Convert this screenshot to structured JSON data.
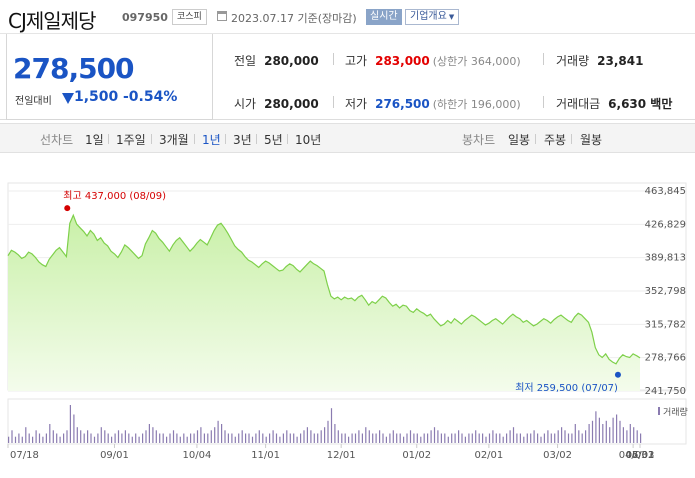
{
  "header": {
    "stock_name": "CJ제일제당",
    "stock_code": "097950",
    "market": "코스피",
    "date_text": "2023.07.17 기준(장마감)",
    "realtime_label": "실시간",
    "company_label": "기업개요"
  },
  "price": {
    "current": "278,500",
    "change_label": "전일대비",
    "change_value": "1,500",
    "change_pct": "-0.54%"
  },
  "info": {
    "prev_close_label": "전일",
    "prev_close": "280,000",
    "high_label": "고가",
    "high": "283,000",
    "upper_limit": "(상한가 364,000)",
    "volume_label": "거래량",
    "volume": "23,841",
    "open_label": "시가",
    "open": "280,000",
    "low_label": "저가",
    "low": "276,500",
    "lower_limit": "(하한가 196,000)",
    "amount_label": "거래대금",
    "amount": "6,630 백만"
  },
  "tabs": {
    "line_chart": "선차트",
    "periods": [
      "1일",
      "1주일",
      "3개월",
      "1년",
      "3년",
      "5년",
      "10년"
    ],
    "active": "1년",
    "candle_chart": "봉차트",
    "candles": [
      "일봉",
      "주봉",
      "월봉"
    ]
  },
  "colors": {
    "price_down": "#1a54c4",
    "price_up": "#e30000",
    "line": "#7ed04a",
    "fill_top": "#c9f0a8",
    "fill_bottom": "#f4fcec",
    "volume_bar": "#8a7bb0"
  },
  "chart_data": {
    "type": "area",
    "y_ticks": [
      "463,845",
      "426,829",
      "389,813",
      "352,798",
      "315,782",
      "278,766",
      "241,750"
    ],
    "ylim": [
      241750,
      463845
    ],
    "x_ticks": [
      "07/18",
      "09/01",
      "10/04",
      "11/01",
      "12/01",
      "01/02",
      "02/01",
      "03/02",
      "04/03",
      "05/02",
      "06/01",
      "07/03"
    ],
    "high_annotation": "최고 437,000 (08/09)",
    "low_annotation": "최저 259,500 (07/07)",
    "volume_legend": "거래량",
    "values": [
      392000,
      398000,
      396000,
      393000,
      389000,
      391000,
      396000,
      394000,
      390000,
      385000,
      382000,
      380000,
      388000,
      393000,
      398000,
      401000,
      396000,
      391000,
      428000,
      437000,
      427000,
      423000,
      419000,
      414000,
      420000,
      416000,
      409000,
      412000,
      406000,
      403000,
      397000,
      394000,
      390000,
      396000,
      404000,
      401000,
      397000,
      393000,
      389000,
      392000,
      405000,
      412000,
      420000,
      417000,
      411000,
      407000,
      402000,
      397000,
      404000,
      409000,
      412000,
      407000,
      402000,
      397000,
      401000,
      406000,
      410000,
      407000,
      404000,
      412000,
      420000,
      426000,
      428000,
      423000,
      417000,
      410000,
      403000,
      399000,
      396000,
      391000,
      387000,
      385000,
      382000,
      379000,
      383000,
      386000,
      384000,
      381000,
      378000,
      375000,
      376000,
      380000,
      383000,
      381000,
      377000,
      374000,
      378000,
      382000,
      386000,
      383000,
      381000,
      378000,
      375000,
      360000,
      347000,
      344000,
      346000,
      343000,
      346000,
      344000,
      345000,
      342000,
      346000,
      348000,
      343000,
      337000,
      341000,
      339000,
      343000,
      347000,
      345000,
      340000,
      336000,
      338000,
      334000,
      337000,
      336000,
      331000,
      329000,
      333000,
      330000,
      328000,
      325000,
      327000,
      322000,
      318000,
      314000,
      316000,
      320000,
      317000,
      322000,
      319000,
      316000,
      320000,
      323000,
      326000,
      324000,
      321000,
      318000,
      315000,
      317000,
      320000,
      322000,
      319000,
      316000,
      320000,
      324000,
      327000,
      324000,
      322000,
      318000,
      320000,
      317000,
      314000,
      316000,
      319000,
      322000,
      320000,
      317000,
      321000,
      324000,
      326000,
      323000,
      320000,
      318000,
      324000,
      328000,
      326000,
      322000,
      318000,
      307000,
      290000,
      282000,
      279000,
      283000,
      277000,
      274000,
      272000,
      278000,
      282000,
      280000,
      279000,
      283000,
      281000,
      278500
    ],
    "volumes": [
      2,
      4,
      2,
      3,
      2,
      5,
      3,
      2,
      4,
      3,
      2,
      3,
      6,
      4,
      3,
      2,
      3,
      4,
      12,
      9,
      5,
      4,
      3,
      4,
      3,
      2,
      3,
      5,
      4,
      3,
      2,
      3,
      4,
      3,
      4,
      3,
      2,
      3,
      2,
      3,
      4,
      6,
      5,
      4,
      3,
      3,
      2,
      3,
      4,
      3,
      2,
      3,
      2,
      3,
      3,
      4,
      5,
      3,
      3,
      4,
      5,
      7,
      6,
      4,
      3,
      3,
      2,
      3,
      4,
      3,
      3,
      2,
      3,
      4,
      3,
      2,
      3,
      4,
      3,
      2,
      3,
      4,
      3,
      3,
      2,
      3,
      4,
      5,
      4,
      3,
      3,
      4,
      5,
      7,
      11,
      6,
      4,
      3,
      3,
      2,
      3,
      3,
      4,
      3,
      5,
      4,
      3,
      3,
      4,
      3,
      2,
      3,
      4,
      3,
      3,
      2,
      3,
      4,
      3,
      3,
      2,
      3,
      3,
      4,
      5,
      4,
      3,
      3,
      2,
      3,
      3,
      4,
      3,
      2,
      3,
      3,
      4,
      3,
      3,
      2,
      3,
      4,
      3,
      3,
      2,
      3,
      4,
      5,
      3,
      3,
      2,
      3,
      3,
      4,
      3,
      2,
      3,
      4,
      3,
      3,
      4,
      5,
      4,
      3,
      3,
      6,
      4,
      3,
      4,
      6,
      7,
      10,
      8,
      6,
      7,
      5,
      8,
      9,
      7,
      5,
      4,
      6,
      5,
      4,
      3
    ]
  }
}
